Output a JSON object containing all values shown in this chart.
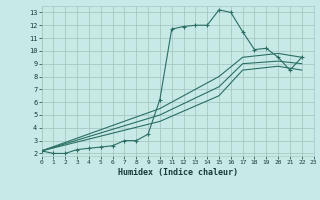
{
  "xlabel": "Humidex (Indice chaleur)",
  "bg_color": "#c8eae6",
  "grid_color": "#a8c8c4",
  "line_color": "#2a6e62",
  "xlim": [
    0,
    23
  ],
  "ylim": [
    1.8,
    13.5
  ],
  "xticks": [
    0,
    1,
    2,
    3,
    4,
    5,
    6,
    7,
    8,
    9,
    10,
    11,
    12,
    13,
    14,
    15,
    16,
    17,
    18,
    19,
    20,
    21,
    22,
    23
  ],
  "yticks": [
    2,
    3,
    4,
    5,
    6,
    7,
    8,
    9,
    10,
    11,
    12,
    13
  ],
  "main_x": [
    0,
    1,
    2,
    3,
    4,
    5,
    6,
    7,
    8,
    9,
    10,
    11,
    12,
    13,
    14,
    15,
    16,
    17,
    18,
    19,
    20,
    21,
    22
  ],
  "main_y": [
    2.2,
    2.0,
    2.0,
    2.3,
    2.4,
    2.5,
    2.6,
    3.0,
    3.0,
    3.5,
    6.2,
    11.7,
    11.9,
    12.0,
    12.0,
    13.2,
    13.0,
    11.5,
    10.1,
    10.2,
    9.5,
    8.5,
    9.5
  ],
  "line2_x": [
    0,
    10,
    15,
    17,
    20,
    22
  ],
  "line2_y": [
    2.2,
    5.5,
    8.0,
    9.5,
    9.8,
    9.5
  ],
  "line3_x": [
    0,
    10,
    15,
    17,
    20,
    22
  ],
  "line3_y": [
    2.2,
    5.0,
    7.2,
    9.0,
    9.2,
    9.0
  ],
  "line4_x": [
    0,
    10,
    15,
    17,
    20,
    22
  ],
  "line4_y": [
    2.2,
    4.5,
    6.5,
    8.5,
    8.8,
    8.5
  ]
}
